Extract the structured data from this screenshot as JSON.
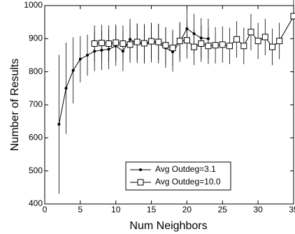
{
  "chart_data": {
    "type": "line",
    "xlabel": "Num Neighbors",
    "ylabel": "Number of Results",
    "xlim": [
      0,
      35
    ],
    "ylim": [
      400,
      1000
    ],
    "xticks": [
      0,
      5,
      10,
      15,
      20,
      25,
      30,
      35
    ],
    "yticks": [
      400,
      500,
      600,
      700,
      800,
      900,
      1000
    ],
    "legend": "lower right",
    "series": [
      {
        "name": "Avg Outdeg=3.1",
        "color": "#000000",
        "marker": "dot",
        "x": [
          2,
          3,
          4,
          5,
          6,
          7,
          8,
          9,
          10,
          11,
          12,
          13,
          14,
          15,
          16,
          17,
          18,
          19,
          20,
          21,
          22,
          23
        ],
        "values": [
          641,
          750,
          804,
          838,
          850,
          862,
          865,
          868,
          878,
          862,
          898,
          886,
          884,
          888,
          885,
          872,
          860,
          890,
          930,
          915,
          902,
          900
        ],
        "errors": [
          210,
          138,
          100,
          70,
          62,
          60,
          60,
          60,
          60,
          60,
          62,
          60,
          60,
          60,
          60,
          60,
          60,
          60,
          62,
          60,
          60,
          60
        ]
      },
      {
        "name": "Avg Outdeg=10.0",
        "color": "#000000",
        "marker": "square",
        "x": [
          7,
          8,
          9,
          10,
          11,
          12,
          13,
          14,
          15,
          16,
          17,
          18,
          19,
          20,
          21,
          22,
          23,
          24,
          25,
          26,
          27,
          28,
          29,
          30,
          31,
          32,
          33,
          35
        ],
        "values": [
          885,
          887,
          885,
          888,
          885,
          882,
          890,
          886,
          892,
          890,
          880,
          872,
          893,
          895,
          875,
          885,
          878,
          880,
          882,
          878,
          898,
          878,
          920,
          893,
          905,
          875,
          893,
          968
        ],
        "errors": [
          55,
          55,
          55,
          55,
          55,
          55,
          55,
          55,
          55,
          55,
          55,
          55,
          55,
          55,
          55,
          55,
          55,
          55,
          55,
          55,
          55,
          55,
          55,
          55,
          55,
          55,
          55,
          55
        ]
      }
    ]
  }
}
